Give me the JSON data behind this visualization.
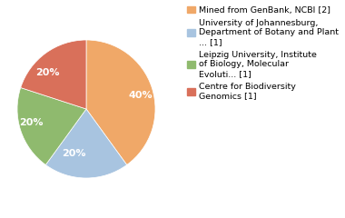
{
  "slices": [
    40,
    20,
    20,
    20
  ],
  "pct_labels": [
    "40%",
    "20%",
    "20%",
    "20%"
  ],
  "colors": [
    "#f0a868",
    "#a8c4e0",
    "#8fba6e",
    "#d9705a"
  ],
  "legend_labels": [
    "Mined from GenBank, NCBI [2]",
    "University of Johannesburg,\nDepartment of Botany and Plant\n... [1]",
    "Leipzig University, Institute\nof Biology, Molecular\nEvoluti... [1]",
    "Centre for Biodiversity\nGenomics [1]"
  ],
  "startangle": 90,
  "background_color": "#ffffff",
  "label_fontsize": 8,
  "legend_fontsize": 6.8
}
